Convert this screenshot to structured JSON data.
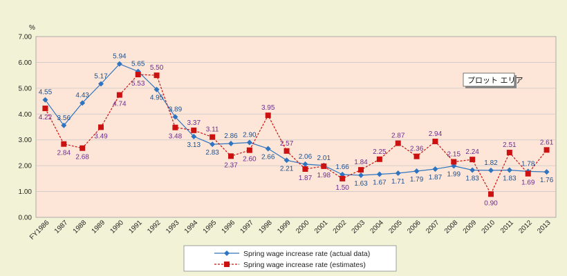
{
  "chart_data": {
    "type": "line",
    "title": "",
    "ylabel": "%",
    "xlabel": "",
    "ylim": [
      0,
      7
    ],
    "yticks": [
      "0.00",
      "1.00",
      "2.00",
      "3.00",
      "4.00",
      "5.00",
      "6.00",
      "7.00"
    ],
    "categories": [
      "FY1986",
      "1987",
      "1988",
      "1989",
      "1990",
      "1991",
      "1992",
      "1993",
      "1994",
      "1995",
      "1996",
      "1997",
      "1998",
      "1999",
      "2000",
      "2001",
      "2002",
      "2003",
      "2004",
      "2005",
      "2006",
      "2007",
      "2008",
      "2009",
      "2010",
      "2011",
      "2012",
      "2013"
    ],
    "grid": true,
    "legend_position": "bottom",
    "series": [
      {
        "name": "Spring wage increase rate (actual data)",
        "color": "#2e74c0",
        "marker": "diamond",
        "line_style": "solid",
        "values": [
          4.55,
          3.56,
          4.43,
          5.17,
          5.94,
          5.65,
          4.95,
          3.89,
          3.13,
          2.83,
          2.86,
          2.9,
          2.66,
          2.21,
          2.06,
          2.01,
          1.66,
          1.63,
          1.67,
          1.71,
          1.79,
          1.87,
          1.99,
          1.83,
          1.82,
          1.83,
          1.78,
          1.76
        ],
        "labels": [
          "4.55",
          "3.56",
          "4.43",
          "5.17",
          "5.94",
          "5.65",
          "4.95",
          "3.89",
          "3.13",
          "2.83",
          "2.86",
          "2.90",
          "2.66",
          "2.21",
          "2.06",
          "2.01",
          "1.66",
          "1.63",
          "1.67",
          "1.71",
          "1.79",
          "1.87",
          "1.99",
          "1.83",
          "1.82",
          "1.83",
          "1.78",
          "1.76"
        ]
      },
      {
        "name": "Spring wage increase rate (estimates)",
        "color": "#cc1111",
        "marker": "square",
        "line_style": "dashed",
        "values": [
          4.22,
          2.84,
          2.68,
          3.49,
          4.74,
          5.53,
          5.5,
          3.48,
          3.37,
          3.11,
          2.37,
          2.6,
          3.95,
          2.57,
          1.87,
          1.98,
          1.5,
          1.84,
          2.25,
          2.87,
          2.36,
          2.94,
          2.15,
          2.24,
          0.9,
          2.51,
          1.69,
          2.61
        ],
        "labels": [
          "4.22",
          "2.84",
          "2.68",
          "3.49",
          "4.74",
          "5.53",
          "5.50",
          "3.48",
          "3.37",
          "3.11",
          "2.37",
          "2.60",
          "3.95",
          "2.57",
          "1.87",
          "1.98",
          "1.50",
          "1.84",
          "2.25",
          "2.87",
          "2.36",
          "2.94",
          "2.15",
          "2.24",
          "0.90",
          "2.51",
          "1.69",
          "2.61"
        ]
      }
    ]
  },
  "tooltip": {
    "text": "プロット エリア"
  },
  "colors": {
    "plot_background": "#fde6d7",
    "chart_background": "#f2f3d6",
    "grid": "#c8c8c8",
    "actual_label": "#1a4f91",
    "estimate_label": "#6b2c8f"
  }
}
